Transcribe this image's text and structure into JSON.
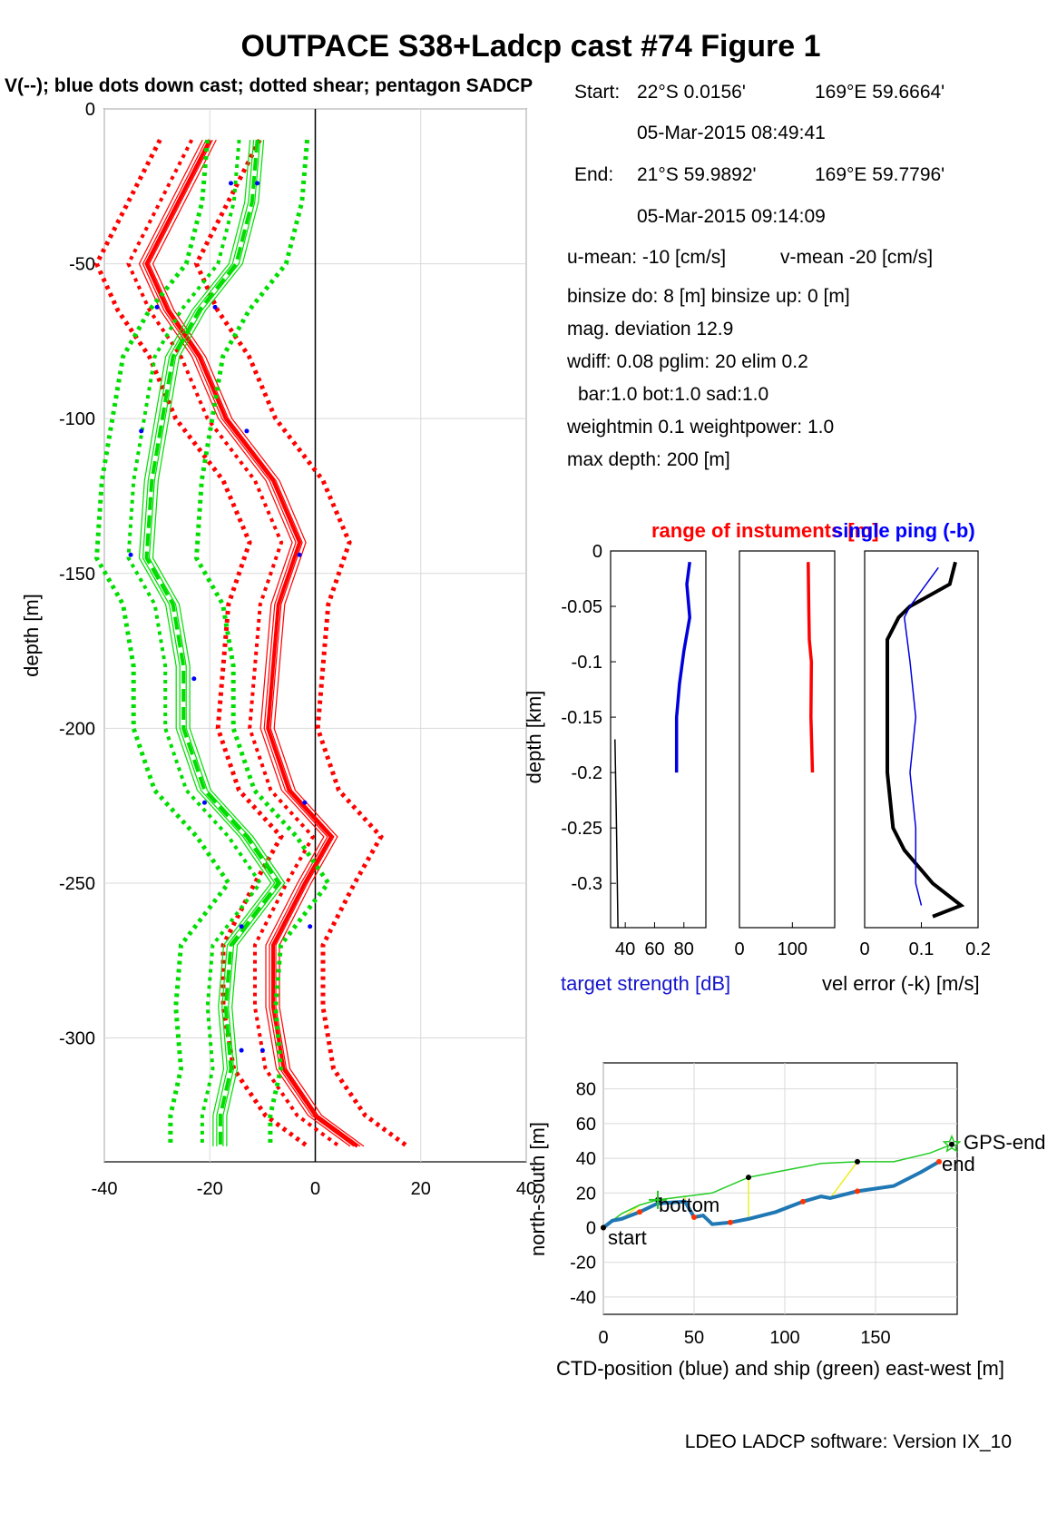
{
  "figure": {
    "title": "OUTPACE S38+Ladcp cast #74  Figure 1",
    "subtitle": "V(--); blue dots down cast; dotted shear; pentagon SADCP",
    "footer": "LDEO LADCP software: Version IX_10"
  },
  "info": {
    "start_label": "Start:",
    "start_lat": "22°S  0.0156'",
    "start_lon": "169°E 59.6664'",
    "start_time": "05-Mar-2015 08:49:41",
    "end_label": "End:",
    "end_lat": "21°S 59.9892'",
    "end_lon": "169°E 59.7796'",
    "end_time": "05-Mar-2015 09:14:09",
    "umean": "u-mean: -10 [cm/s]",
    "vmean": "v-mean -20 [cm/s]",
    "binsize": "binsize do: 8 [m]  binsize up:  0 [m]",
    "magdev": "mag. deviation 12.9",
    "wdiff": "wdiff: 0.08  pglim: 20  elim 0.2",
    "bar": "bar:1.0 bot:1.0 sad:1.0",
    "weight": "weightmin 0.1  weightpower: 1.0",
    "maxdepth": "max depth: 200 [m]"
  },
  "colors": {
    "u": "#ff0000",
    "v": "#00dd00",
    "ts": "#0000dd",
    "ctd": "#1f77b4",
    "ship": "#22cc22",
    "link": "#eeee22",
    "grid": "#d9d9d9"
  },
  "chart_data": [
    {
      "type": "line",
      "ylabel": "depth [m]",
      "xlim": [
        -40,
        40
      ],
      "ylim": [
        -340,
        0
      ],
      "xticks": [
        "-40",
        "-20",
        "0",
        "20",
        "40"
      ],
      "yticks": [
        "0",
        "-50",
        "-100",
        "-150",
        "-200",
        "-250",
        "-300"
      ],
      "grid": true,
      "series": [
        {
          "color": "red",
          "depth": [
            -10,
            -30,
            -50,
            -65,
            -80,
            -100,
            -120,
            -140,
            -160,
            -180,
            -200,
            -220,
            -235,
            -250,
            -270,
            -290,
            -310,
            -325,
            -335
          ],
          "values": [
            -20,
            -26,
            -32,
            -28,
            -22,
            -17,
            -8,
            -3,
            -7,
            -8,
            -9,
            -5,
            3,
            -2,
            -8,
            -8,
            -6,
            0,
            8
          ]
        },
        {
          "color": "green",
          "depth": [
            -10,
            -30,
            -50,
            -65,
            -80,
            -100,
            -120,
            -145,
            -160,
            -180,
            -200,
            -220,
            -235,
            -250,
            -270,
            -290,
            -310,
            -325,
            -335
          ],
          "values": [
            -11,
            -12,
            -15,
            -22,
            -27,
            -29,
            -31,
            -32,
            -27,
            -25,
            -25,
            -21,
            -13,
            -7,
            -16,
            -17,
            -16,
            -18,
            -18
          ]
        }
      ],
      "blue_dots": [
        [
          -16,
          -24
        ],
        [
          -11,
          -24
        ],
        [
          -30,
          -64
        ],
        [
          -19,
          -64
        ],
        [
          -33,
          -104
        ],
        [
          -13,
          -104
        ],
        [
          -35,
          -144
        ],
        [
          -3,
          -144
        ],
        [
          -23,
          -184
        ],
        [
          -21,
          -224
        ],
        [
          -2,
          -224
        ],
        [
          -14,
          -264
        ],
        [
          -1,
          -264
        ],
        [
          -14,
          -304
        ],
        [
          -10,
          -304
        ]
      ]
    },
    {
      "type": "line",
      "title": "range of instuments [m]",
      "xlabel": "target strength [dB]",
      "ylabel": "depth [km]",
      "xlim": [
        30,
        95
      ],
      "ylim": [
        -0.34,
        0
      ],
      "xticks": [
        "40",
        "60",
        "80"
      ],
      "yticks": [
        "0",
        "-0.05",
        "-0.1",
        "-0.15",
        "-0.2",
        "-0.25",
        "-0.3"
      ],
      "series": [
        {
          "color": "blue",
          "depth": [
            -0.01,
            -0.03,
            -0.06,
            -0.09,
            -0.12,
            -0.15,
            -0.2
          ],
          "values": [
            84,
            82,
            84,
            80,
            77,
            75,
            75
          ]
        },
        {
          "color": "black",
          "depth": [
            -0.17,
            -0.25,
            -0.34
          ],
          "values": [
            33,
            34,
            35
          ]
        }
      ]
    },
    {
      "type": "line",
      "xlim": [
        0,
        180
      ],
      "ylim": [
        -0.34,
        0
      ],
      "xticks": [
        "0",
        "100"
      ],
      "series": [
        {
          "color": "red",
          "depth": [
            -0.01,
            -0.05,
            -0.08,
            -0.1,
            -0.15,
            -0.2
          ],
          "values": [
            130,
            131,
            132,
            136,
            135,
            138
          ]
        }
      ]
    },
    {
      "type": "line",
      "title": "single ping (-b)",
      "xlabel": "vel error (-k) [m/s]",
      "xlim": [
        0,
        0.2
      ],
      "ylim": [
        -0.34,
        0
      ],
      "xticks": [
        "0",
        "0.1",
        "0.2"
      ],
      "series": [
        {
          "color": "black",
          "depth": [
            -0.01,
            -0.03,
            -0.05,
            -0.06,
            -0.08,
            -0.15,
            -0.2,
            -0.25,
            -0.27,
            -0.3,
            -0.32,
            -0.33
          ],
          "values": [
            0.16,
            0.15,
            0.08,
            0.06,
            0.04,
            0.04,
            0.04,
            0.05,
            0.07,
            0.12,
            0.17,
            0.12
          ]
        },
        {
          "color": "blue",
          "depth": [
            -0.015,
            -0.05,
            -0.06,
            -0.1,
            -0.15,
            -0.2,
            -0.25,
            -0.3,
            -0.32
          ],
          "values": [
            0.13,
            0.08,
            0.07,
            0.08,
            0.09,
            0.08,
            0.09,
            0.09,
            0.1
          ]
        }
      ]
    },
    {
      "type": "line",
      "xlabel": "CTD-position (blue) and ship (green) east-west [m]",
      "ylabel": "north-south [m]",
      "xlim": [
        0,
        195
      ],
      "ylim": [
        -50,
        95
      ],
      "xticks": [
        "0",
        "50",
        "100",
        "150"
      ],
      "yticks": [
        "80",
        "60",
        "40",
        "20",
        "0",
        "-20",
        "-40"
      ],
      "grid": true,
      "series": [
        {
          "name": "CTD-position",
          "color": "blue",
          "x": [
            0,
            5,
            10,
            20,
            30,
            45,
            50,
            55,
            60,
            70,
            80,
            95,
            110,
            120,
            125,
            140,
            160,
            175,
            185
          ],
          "y": [
            0,
            4,
            5,
            9,
            14,
            15,
            6,
            7,
            2,
            3,
            5,
            9,
            15,
            18,
            17,
            21,
            24,
            32,
            38
          ]
        },
        {
          "name": "ship",
          "color": "green",
          "x": [
            0,
            10,
            20,
            30,
            45,
            60,
            80,
            100,
            120,
            140,
            160,
            180,
            192
          ],
          "y": [
            0,
            8,
            13,
            16,
            18,
            20,
            29,
            33,
            37,
            38,
            38,
            43,
            48
          ]
        }
      ],
      "annotations": [
        "start",
        "bottom",
        "end",
        "GPS-end"
      ]
    }
  ]
}
